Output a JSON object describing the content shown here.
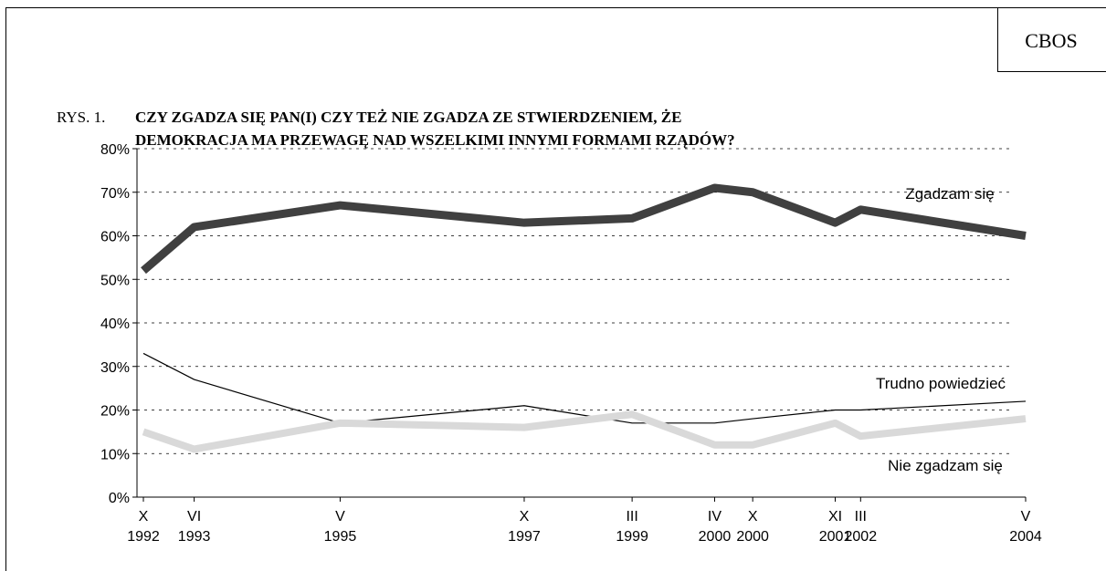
{
  "source": "CBOS",
  "chart_data": {
    "type": "line",
    "label": "RYS. 1.",
    "title": [
      "CZY ZGADZA SIĘ PAN(I) CZY TEŻ NIE ZGADZA ZE STWIERDZENIEM, ŻE",
      "DEMOKRACJA MA PRZEWAGĘ NAD WSZELKIMI INNYMI FORMAMI RZĄDÓW?"
    ],
    "x": [
      "1992-10",
      "1993-06",
      "1995-05",
      "1997-10",
      "1999-03",
      "2000-04",
      "2000-10",
      "2001-11",
      "2002-03",
      "2004-05"
    ],
    "xlim": [
      "1992-10",
      "2004-05"
    ],
    "xticks": [
      {
        "value": "1992-10",
        "label": [
          "X",
          "1992"
        ]
      },
      {
        "value": "1993-06",
        "label": [
          "VI",
          "1993"
        ]
      },
      {
        "value": "1995-05",
        "label": [
          "V",
          "1995"
        ]
      },
      {
        "value": "1997-10",
        "label": [
          "X",
          "1997"
        ]
      },
      {
        "value": "1999-03",
        "label": [
          "III",
          "1999"
        ]
      },
      {
        "value": "2000-04",
        "label": [
          "IV",
          "2000"
        ]
      },
      {
        "value": "2000-10",
        "label": [
          "X",
          "2000"
        ]
      },
      {
        "value": "2001-11",
        "label": [
          "XI",
          "2001"
        ]
      },
      {
        "value": "2002-03",
        "label": [
          "III",
          "2002"
        ]
      },
      {
        "value": "2004-05",
        "label": [
          "V",
          "2004"
        ]
      }
    ],
    "ylim": [
      0,
      80
    ],
    "yticks": [
      {
        "value": 0,
        "label": "0%"
      },
      {
        "value": 10,
        "label": "10%"
      },
      {
        "value": 20,
        "label": "20%"
      },
      {
        "value": 30,
        "label": "30%"
      },
      {
        "value": 40,
        "label": "40%"
      },
      {
        "value": 50,
        "label": "50%"
      },
      {
        "value": 60,
        "label": "60%"
      },
      {
        "value": 70,
        "label": "70%"
      },
      {
        "value": 80,
        "label": "80%"
      }
    ],
    "grid": true,
    "series": [
      {
        "name": "Zgadzam się",
        "color": "#404040",
        "values": [
          52,
          62,
          67,
          63,
          64,
          71,
          70,
          63,
          66,
          60
        ]
      },
      {
        "name": "Trudno powiedzieć",
        "color": "#000000",
        "values": [
          33,
          27,
          17,
          21,
          17,
          17,
          18,
          20,
          20,
          22
        ]
      },
      {
        "name": "Nie zgadzam się",
        "color": "#d9d9d9",
        "values": [
          15,
          11,
          17,
          16,
          19,
          12,
          12,
          17,
          14,
          18
        ]
      }
    ]
  }
}
